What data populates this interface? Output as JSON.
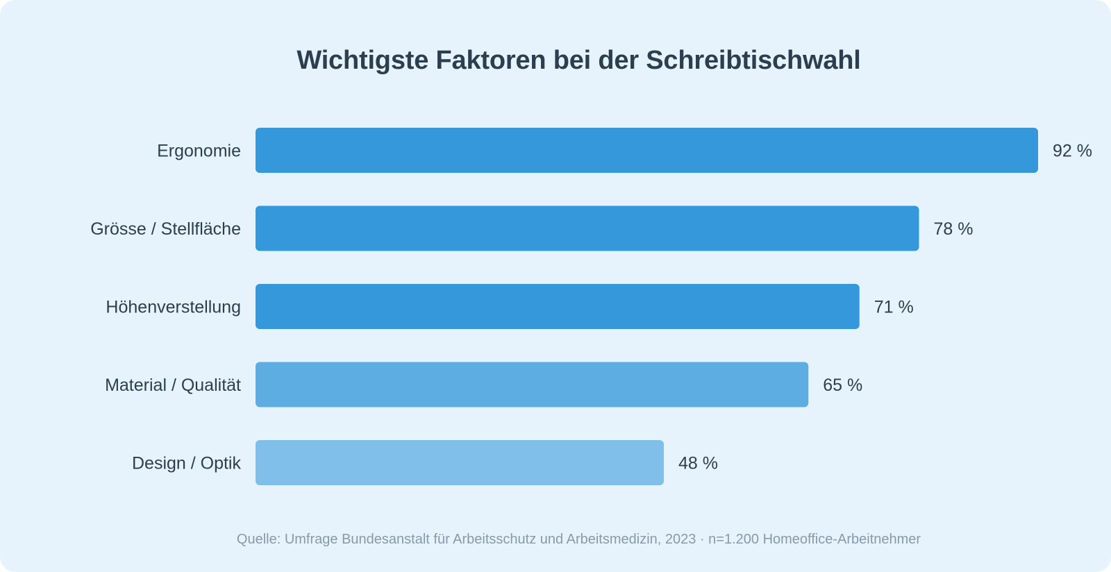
{
  "chart_data": {
    "type": "bar",
    "orientation": "horizontal",
    "title": "Wichtigste Faktoren bei der Schreibtischwahl",
    "categories": [
      "Ergonomie",
      "Grösse / Stellfläche",
      "Höhenverstellung",
      "Material / Qualität",
      "Design / Optik"
    ],
    "values": [
      92,
      78,
      71,
      65,
      48
    ],
    "value_labels": [
      "92 %",
      "78 %",
      "71 %",
      "65 %",
      "48 %"
    ],
    "unit": "%",
    "xlim": [
      0,
      100
    ],
    "grid": false,
    "legend": "none",
    "colors": [
      "#3498db",
      "#3498db",
      "#3498db",
      "#5dade2",
      "#7fbfe9"
    ],
    "source": "Quelle: Umfrage Bundesanstalt für Arbeitsschutz und Arbeitsmedizin, 2023 · n=1.200 Homeoffice-Arbeitnehmer"
  },
  "colors": {
    "background": "#e7f3fc",
    "title": "#2c3e50",
    "label": "#2c3e50",
    "source": "#8a98a8"
  }
}
